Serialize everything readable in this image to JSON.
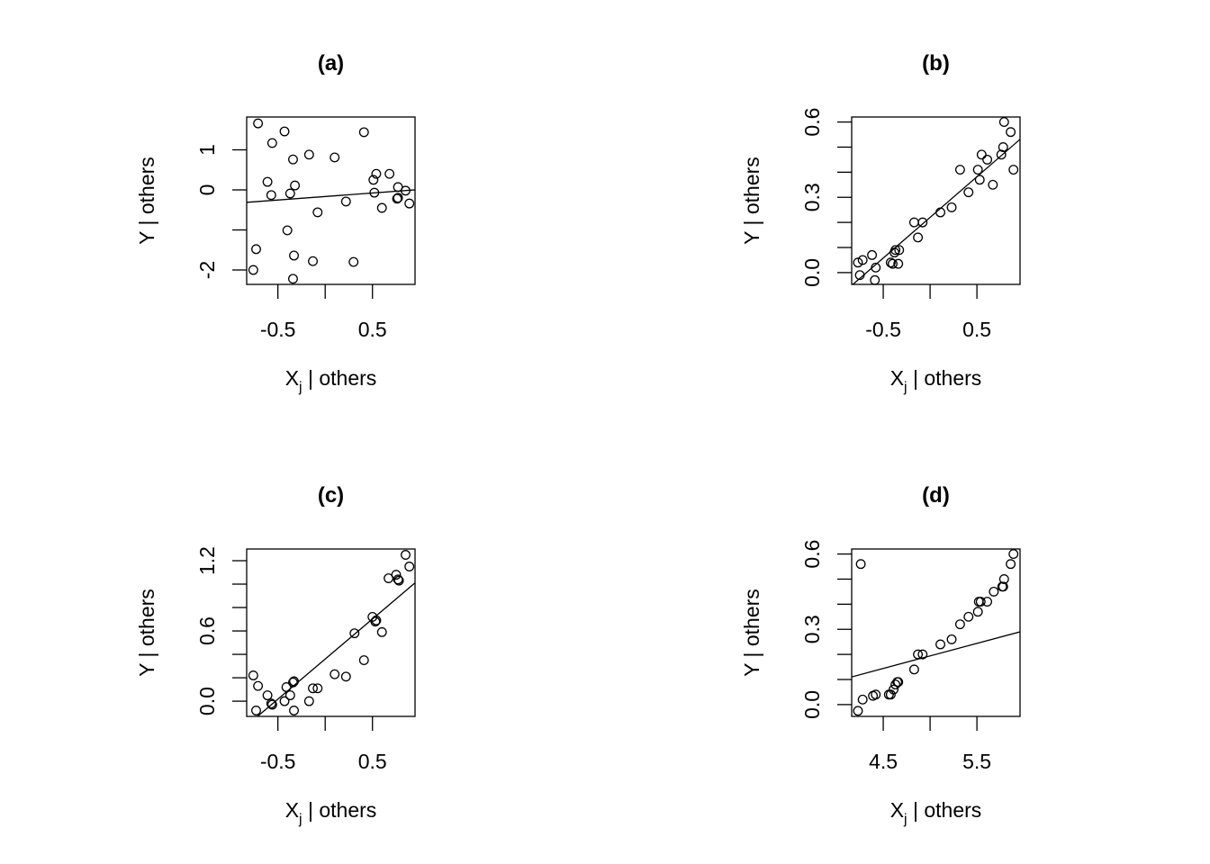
{
  "chart_data": [
    {
      "type": "scatter",
      "title": "(a)",
      "xlabel": "X",
      "xlabel_sub": "j",
      "xlabel_rest": " | others",
      "ylabel": "Y | others",
      "xlim": [
        -0.83,
        0.95
      ],
      "ylim": [
        -2.36,
        1.82
      ],
      "xticks": [
        -0.5,
        0,
        0.5
      ],
      "xtick_labels": [
        "-0.5",
        "",
        "0.5"
      ],
      "yticks": [
        -2,
        -1,
        0,
        1
      ],
      "ytick_labels": [
        "-2",
        "",
        "0",
        "1"
      ],
      "grid": false,
      "points": [
        [
          -0.71,
          1.66
        ],
        [
          -0.43,
          1.46
        ],
        [
          0.41,
          1.44
        ],
        [
          -0.56,
          1.17
        ],
        [
          -0.34,
          0.76
        ],
        [
          -0.17,
          0.88
        ],
        [
          0.1,
          0.81
        ],
        [
          0.54,
          0.4
        ],
        [
          0.68,
          0.4
        ],
        [
          0.51,
          0.25
        ],
        [
          -0.61,
          0.2
        ],
        [
          -0.32,
          0.11
        ],
        [
          -0.57,
          -0.13
        ],
        [
          -0.37,
          -0.09
        ],
        [
          0.77,
          0.07
        ],
        [
          0.85,
          -0.02
        ],
        [
          0.52,
          -0.07
        ],
        [
          0.76,
          -0.22
        ],
        [
          0.77,
          -0.2
        ],
        [
          0.89,
          -0.34
        ],
        [
          0.22,
          -0.29
        ],
        [
          0.6,
          -0.45
        ],
        [
          -0.08,
          -0.56
        ],
        [
          -0.4,
          -1.01
        ],
        [
          -0.73,
          -1.48
        ],
        [
          -0.33,
          -1.64
        ],
        [
          -0.13,
          -1.78
        ],
        [
          0.3,
          -1.8
        ],
        [
          -0.76,
          -2.0
        ],
        [
          -0.34,
          -2.22
        ]
      ],
      "fit_line": {
        "slope": 0.175,
        "intercept": -0.165
      }
    },
    {
      "type": "scatter",
      "title": "(b)",
      "xlabel": "X",
      "xlabel_sub": "j",
      "xlabel_rest": " | others",
      "ylabel": "Y | others",
      "xlim": [
        -0.837,
        0.96
      ],
      "ylim": [
        -0.047,
        0.62
      ],
      "xticks": [
        -0.5,
        0,
        0.5
      ],
      "xtick_labels": [
        "-0.5",
        "",
        "0.5"
      ],
      "yticks": [
        0,
        0.1,
        0.2,
        0.3,
        0.4,
        0.5,
        0.6
      ],
      "ytick_labels": [
        "0.0",
        "",
        "",
        "0.3",
        "",
        "",
        "0.6"
      ],
      "grid": false,
      "points": [
        [
          0.79,
          0.6
        ],
        [
          0.86,
          0.56
        ],
        [
          0.78,
          0.5
        ],
        [
          0.55,
          0.47
        ],
        [
          0.61,
          0.45
        ],
        [
          0.76,
          0.47
        ],
        [
          0.32,
          0.41
        ],
        [
          0.51,
          0.41
        ],
        [
          0.89,
          0.41
        ],
        [
          0.53,
          0.37
        ],
        [
          0.67,
          0.35
        ],
        [
          0.41,
          0.32
        ],
        [
          0.23,
          0.26
        ],
        [
          0.11,
          0.24
        ],
        [
          -0.17,
          0.2
        ],
        [
          -0.08,
          0.2
        ],
        [
          -0.13,
          0.14
        ],
        [
          -0.37,
          0.09
        ],
        [
          -0.33,
          0.09
        ],
        [
          -0.38,
          0.08
        ],
        [
          -0.62,
          0.07
        ],
        [
          -0.72,
          0.05
        ],
        [
          -0.77,
          0.04
        ],
        [
          -0.42,
          0.04
        ],
        [
          -0.4,
          0.035
        ],
        [
          -0.34,
          0.035
        ],
        [
          -0.58,
          0.02
        ],
        [
          -0.75,
          -0.01
        ],
        [
          -0.59,
          -0.03
        ]
      ],
      "fit_line": {
        "slope": 0.324,
        "intercept": 0.22
      }
    },
    {
      "type": "scatter",
      "title": "(c)",
      "xlabel": "X",
      "xlabel_sub": "j",
      "xlabel_rest": " | others",
      "ylabel": "Y | others",
      "xlim": [
        -0.83,
        0.95
      ],
      "ylim": [
        -0.13,
        1.3
      ],
      "xticks": [
        -0.5,
        0,
        0.5
      ],
      "xtick_labels": [
        "-0.5",
        "",
        "0.5"
      ],
      "yticks": [
        0,
        0.2,
        0.4,
        0.6,
        0.8,
        1.0,
        1.2
      ],
      "ytick_labels": [
        "0.0",
        "",
        "",
        "0.6",
        "",
        "",
        "1.2"
      ],
      "grid": false,
      "points": [
        [
          0.85,
          1.25
        ],
        [
          0.89,
          1.15
        ],
        [
          0.75,
          1.08
        ],
        [
          0.67,
          1.05
        ],
        [
          0.77,
          1.04
        ],
        [
          0.78,
          1.03
        ],
        [
          0.5,
          0.72
        ],
        [
          0.53,
          0.68
        ],
        [
          0.54,
          0.69
        ],
        [
          0.6,
          0.59
        ],
        [
          0.31,
          0.58
        ],
        [
          0.41,
          0.35
        ],
        [
          0.1,
          0.23
        ],
        [
          0.22,
          0.21
        ],
        [
          -0.76,
          0.22
        ],
        [
          -0.71,
          0.13
        ],
        [
          -0.33,
          0.17
        ],
        [
          -0.34,
          0.16
        ],
        [
          -0.41,
          0.12
        ],
        [
          -0.13,
          0.11
        ],
        [
          -0.08,
          0.11
        ],
        [
          -0.61,
          0.05
        ],
        [
          -0.37,
          0.05
        ],
        [
          -0.57,
          -0.02
        ],
        [
          -0.56,
          -0.03
        ],
        [
          -0.43,
          0.0
        ],
        [
          -0.17,
          0.0
        ],
        [
          -0.73,
          -0.08
        ],
        [
          -0.33,
          -0.08
        ]
      ],
      "fit_line": {
        "slope": 0.685,
        "intercept": 0.36
      }
    },
    {
      "type": "scatter",
      "title": "(d)",
      "xlabel": "X",
      "xlabel_sub": "j",
      "xlabel_rest": " | others",
      "ylabel": "Y | others",
      "xlim": [
        4.163,
        5.96
      ],
      "ylim": [
        -0.047,
        0.62
      ],
      "xticks": [
        4.5,
        5.0,
        5.5
      ],
      "xtick_labels": [
        "4.5",
        "",
        "5.5"
      ],
      "yticks": [
        0,
        0.1,
        0.2,
        0.3,
        0.4,
        0.5,
        0.6
      ],
      "ytick_labels": [
        "0.0",
        "",
        "",
        "0.3",
        "",
        "",
        "0.6"
      ],
      "grid": false,
      "points": [
        [
          5.89,
          0.6
        ],
        [
          5.86,
          0.56
        ],
        [
          4.26,
          0.56
        ],
        [
          5.79,
          0.5
        ],
        [
          5.77,
          0.47
        ],
        [
          5.78,
          0.47
        ],
        [
          5.68,
          0.45
        ],
        [
          5.61,
          0.41
        ],
        [
          5.54,
          0.41
        ],
        [
          5.52,
          0.41
        ],
        [
          5.51,
          0.37
        ],
        [
          5.41,
          0.35
        ],
        [
          5.32,
          0.32
        ],
        [
          5.23,
          0.26
        ],
        [
          5.11,
          0.24
        ],
        [
          4.87,
          0.2
        ],
        [
          4.92,
          0.2
        ],
        [
          4.83,
          0.14
        ],
        [
          4.66,
          0.09
        ],
        [
          4.65,
          0.09
        ],
        [
          4.63,
          0.08
        ],
        [
          4.61,
          0.06
        ],
        [
          4.58,
          0.04
        ],
        [
          4.56,
          0.04
        ],
        [
          4.42,
          0.04
        ],
        [
          4.39,
          0.035
        ],
        [
          4.28,
          0.02
        ],
        [
          4.23,
          -0.025
        ]
      ],
      "fit_line": {
        "slope": 0.1,
        "intercept": -0.306
      }
    }
  ]
}
